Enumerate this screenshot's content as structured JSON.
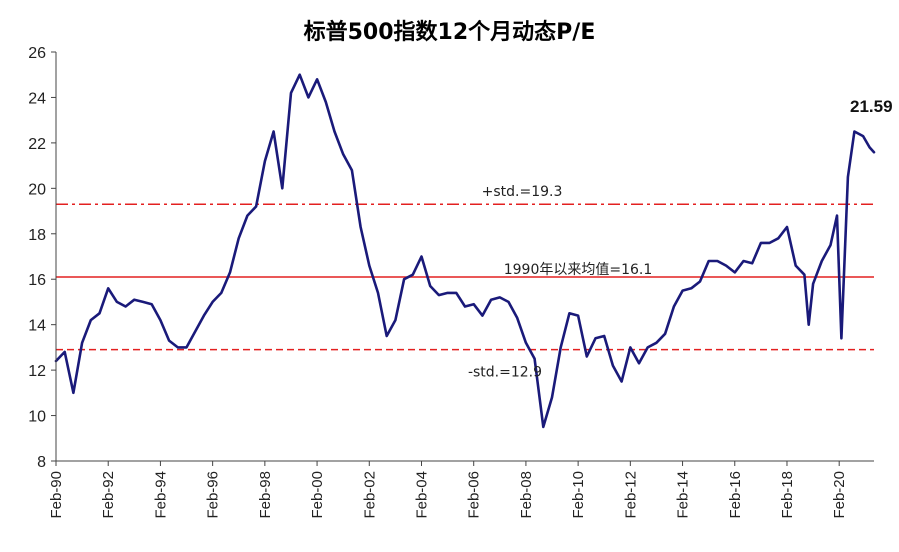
{
  "chart_data": {
    "type": "line",
    "title": "标普500指数12个月动态P/E",
    "xlabel": "",
    "ylabel": "",
    "ylim": [
      8,
      26
    ],
    "y_ticks": [
      8,
      10,
      12,
      14,
      16,
      18,
      20,
      22,
      24,
      26
    ],
    "x_range": [
      "1990-02",
      "2021-06"
    ],
    "x_tick_labels": [
      "Feb-90",
      "Feb-92",
      "Feb-94",
      "Feb-96",
      "Feb-98",
      "Feb-00",
      "Feb-02",
      "Feb-04",
      "Feb-06",
      "Feb-08",
      "Feb-10",
      "Feb-12",
      "Feb-14",
      "Feb-16",
      "Feb-18",
      "Feb-20"
    ],
    "grid": false,
    "legend": "none",
    "series": [
      {
        "color": "#1a1a7a",
        "x": [
          "1990-02",
          "1990-06",
          "1990-10",
          "1991-02",
          "1991-06",
          "1991-10",
          "1992-02",
          "1992-06",
          "1992-10",
          "1993-02",
          "1993-06",
          "1993-10",
          "1994-02",
          "1994-06",
          "1994-10",
          "1995-02",
          "1995-06",
          "1995-10",
          "1996-02",
          "1996-06",
          "1996-10",
          "1997-02",
          "1997-06",
          "1997-10",
          "1998-02",
          "1998-06",
          "1998-10",
          "1999-02",
          "1999-06",
          "1999-10",
          "2000-02",
          "2000-06",
          "2000-10",
          "2001-02",
          "2001-06",
          "2001-10",
          "2002-02",
          "2002-06",
          "2002-10",
          "2003-02",
          "2003-06",
          "2003-10",
          "2004-02",
          "2004-06",
          "2004-10",
          "2005-02",
          "2005-06",
          "2005-10",
          "2006-02",
          "2006-06",
          "2006-10",
          "2007-02",
          "2007-06",
          "2007-10",
          "2008-02",
          "2008-06",
          "2008-10",
          "2009-02",
          "2009-06",
          "2009-10",
          "2010-02",
          "2010-06",
          "2010-10",
          "2011-02",
          "2011-06",
          "2011-10",
          "2012-02",
          "2012-06",
          "2012-10",
          "2013-02",
          "2013-06",
          "2013-10",
          "2014-02",
          "2014-06",
          "2014-10",
          "2015-02",
          "2015-06",
          "2015-10",
          "2016-02",
          "2016-06",
          "2016-10",
          "2017-02",
          "2017-06",
          "2017-10",
          "2018-02",
          "2018-06",
          "2018-10",
          "2018-12",
          "2019-02",
          "2019-06",
          "2019-10",
          "2020-01",
          "2020-03",
          "2020-06",
          "2020-09",
          "2021-01",
          "2021-04",
          "2021-06"
        ],
        "values": [
          12.4,
          12.8,
          11.0,
          13.2,
          14.2,
          14.5,
          15.6,
          15.0,
          14.8,
          15.1,
          15.0,
          14.9,
          14.2,
          13.3,
          13.0,
          13.0,
          13.7,
          14.4,
          15.0,
          15.4,
          16.3,
          17.8,
          18.8,
          19.2,
          21.2,
          22.5,
          20.0,
          24.2,
          25.0,
          24.0,
          24.8,
          23.8,
          22.5,
          21.5,
          20.8,
          18.3,
          16.6,
          15.4,
          13.5,
          14.2,
          16.0,
          16.2,
          17.0,
          15.7,
          15.3,
          15.4,
          15.4,
          14.8,
          14.9,
          14.4,
          15.1,
          15.2,
          15.0,
          14.3,
          13.2,
          12.5,
          9.5,
          10.8,
          13.0,
          14.5,
          14.4,
          12.6,
          13.4,
          13.5,
          12.2,
          11.5,
          13.0,
          12.3,
          13.0,
          13.2,
          13.6,
          14.8,
          15.5,
          15.6,
          15.9,
          16.8,
          16.8,
          16.6,
          16.3,
          16.8,
          16.7,
          17.6,
          17.6,
          17.8,
          18.3,
          16.6,
          16.2,
          14.0,
          15.8,
          16.8,
          17.5,
          18.8,
          13.4,
          20.5,
          22.5,
          22.3,
          21.8,
          21.59
        ]
      }
    ],
    "reference_lines": [
      {
        "label": "+std.=19.3",
        "value": 19.3,
        "color": "#e32020",
        "style": "dash-dot"
      },
      {
        "label": "1990年以来均值=16.1",
        "value": 16.1,
        "color": "#e32020",
        "style": "solid"
      },
      {
        "label": "-std.=12.9",
        "value": 12.9,
        "color": "#e32020",
        "style": "dashed"
      }
    ],
    "annotations": [
      {
        "text": "21.59",
        "target": "last-point"
      }
    ]
  }
}
